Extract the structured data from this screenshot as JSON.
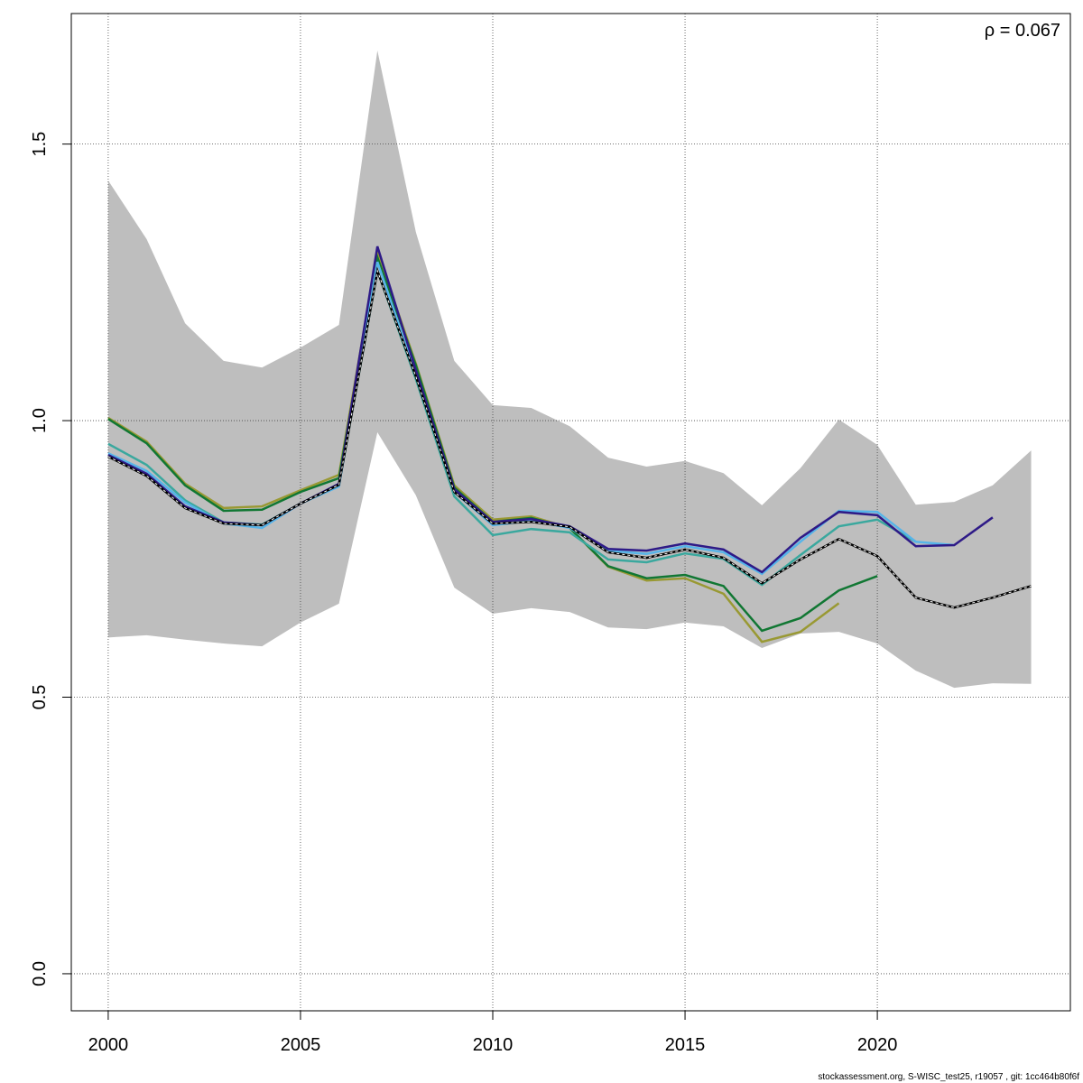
{
  "chart_data": {
    "type": "line",
    "annotation": "ρ = 0.067",
    "footer": "stockassessment.org, S-WISC_test25, r19057 , git: 1cc464b80f6f",
    "x": [
      2000,
      2001,
      2002,
      2003,
      2004,
      2005,
      2006,
      2007,
      2008,
      2009,
      2010,
      2011,
      2012,
      2013,
      2014,
      2015,
      2016,
      2017,
      2018,
      2019,
      2020,
      2021,
      2022,
      2023,
      2024
    ],
    "band": {
      "color": "#bebebe",
      "upper": [
        1.434,
        1.328,
        1.176,
        1.108,
        1.096,
        1.132,
        1.173,
        1.669,
        1.341,
        1.108,
        1.028,
        1.023,
        0.99,
        0.933,
        0.917,
        0.927,
        0.905,
        0.847,
        0.914,
        1.002,
        0.956,
        0.848,
        0.853,
        0.883,
        0.946
      ],
      "lower": [
        0.608,
        0.612,
        0.604,
        0.597,
        0.592,
        0.635,
        0.669,
        0.979,
        0.865,
        0.698,
        0.651,
        0.661,
        0.654,
        0.626,
        0.623,
        0.635,
        0.628,
        0.589,
        0.615,
        0.618,
        0.597,
        0.548,
        0.517,
        0.525,
        0.524
      ]
    },
    "series": [
      {
        "color": "#999933",
        "values": [
          1.005,
          0.962,
          0.886,
          0.842,
          0.845,
          0.874,
          0.902,
          1.303,
          1.103,
          0.883,
          0.821,
          0.827,
          0.806,
          0.736,
          0.711,
          0.715,
          0.687,
          0.6,
          0.618,
          0.67,
          null,
          null,
          null,
          null,
          null
        ]
      },
      {
        "color": "#117733",
        "values": [
          1.003,
          0.959,
          0.883,
          0.837,
          0.839,
          0.871,
          0.896,
          1.295,
          1.1,
          0.879,
          0.817,
          0.824,
          0.806,
          0.737,
          0.715,
          0.721,
          0.701,
          0.62,
          0.643,
          0.693,
          0.719,
          null,
          null,
          null,
          null
        ]
      },
      {
        "color": "#3aa89e",
        "values": [
          0.958,
          0.92,
          0.856,
          0.816,
          0.812,
          0.85,
          0.884,
          1.271,
          1.075,
          0.863,
          0.793,
          0.804,
          0.798,
          0.749,
          0.744,
          0.76,
          0.75,
          0.703,
          0.757,
          0.809,
          0.821,
          0.781,
          null,
          null,
          null
        ]
      },
      {
        "color": "#56b4e9",
        "values": [
          0.941,
          0.909,
          0.852,
          0.814,
          0.806,
          0.85,
          0.881,
          1.287,
          1.083,
          0.871,
          0.811,
          0.819,
          0.806,
          0.765,
          0.759,
          0.773,
          0.762,
          0.723,
          0.781,
          0.837,
          0.835,
          0.781,
          0.775,
          null,
          null
        ]
      },
      {
        "color": "#2e1a87",
        "values": [
          0.938,
          0.904,
          0.845,
          0.816,
          0.811,
          0.85,
          0.886,
          1.315,
          1.091,
          0.876,
          0.817,
          0.822,
          0.809,
          0.768,
          0.765,
          0.778,
          0.767,
          0.726,
          0.788,
          0.835,
          0.829,
          0.773,
          0.775,
          0.825,
          null
        ]
      },
      {
        "color": "#000000",
        "dashed": true,
        "values": [
          0.935,
          0.9,
          0.842,
          0.814,
          0.811,
          0.85,
          0.884,
          1.271,
          1.08,
          0.871,
          0.814,
          0.817,
          0.808,
          0.762,
          0.752,
          0.767,
          0.752,
          0.706,
          0.749,
          0.786,
          0.755,
          0.68,
          0.662,
          0.68,
          0.701
        ]
      }
    ],
    "xlim": [
      1999.04,
      2025.02
    ],
    "ylim": [
      -0.067,
      1.736
    ],
    "xticks": [
      2000,
      2005,
      2010,
      2015,
      2020
    ],
    "yticks": [
      {
        "value": 0,
        "label": "0.0"
      },
      0.5,
      {
        "value": 1,
        "label": "1.0"
      },
      1.5
    ],
    "grid": true
  }
}
